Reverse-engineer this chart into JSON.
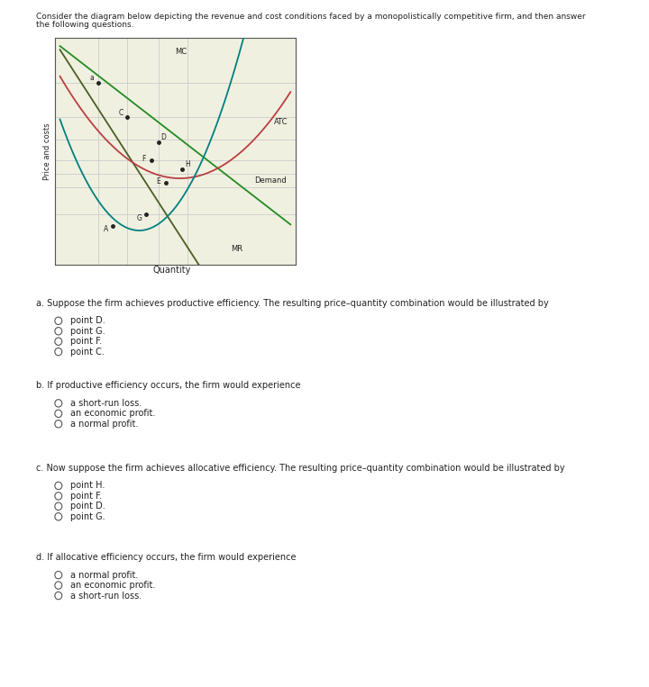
{
  "title_line1": "Consider the diagram below depicting the revenue and cost conditions faced by a monopolistically competitive firm, and then answer",
  "title_line2": "the following questions.",
  "ylabel": "Price and costs",
  "xlabel": "Quantity",
  "graph_bg": "#f0f0e0",
  "mc_color": "#008080",
  "atc_color": "#b84040",
  "demand_color": "#228B22",
  "mr_color": "#4a5e23",
  "mc_label": "MC",
  "atc_label": "ATC",
  "demand_label": "Demand",
  "mr_label": "MR",
  "questions": [
    {
      "label": "a. Suppose the firm achieves productive efficiency. The resulting price–quantity combination would be illustrated by",
      "options": [
        "point D.",
        "point G.",
        "point F.",
        "point C."
      ]
    },
    {
      "label": "b. If productive efficiency occurs, the firm would experience",
      "options": [
        "a short-run loss.",
        "an economic profit.",
        "a normal profit."
      ]
    },
    {
      "label": "c. Now suppose the firm achieves allocative efficiency. The resulting price–quantity combination would be illustrated by",
      "options": [
        "point H.",
        "point F.",
        "point D.",
        "point G."
      ]
    },
    {
      "label": "d. If allocative efficiency occurs, the firm would experience",
      "options": [
        "a normal profit.",
        "an economic profit.",
        "a short-run loss."
      ]
    }
  ],
  "figsize": [
    7.2,
    7.63
  ],
  "dpi": 100
}
